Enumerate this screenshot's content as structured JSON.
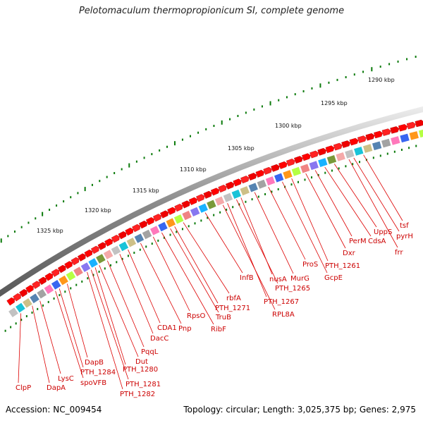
{
  "title": "Pelotomaculum thermopropionicum SI, complete genome",
  "accession": "Accession: NC_009454",
  "summary": "Topology: circular; Length: 3,025,375 bp; Genes: 2,975",
  "colors": {
    "backbone": "#777777",
    "forward_gene": "#ff0000",
    "gene_label": "#cc0000",
    "tick": "#0a7a0a"
  },
  "scale_labels": [
    "1325 kbp",
    "1320 kbp",
    "1315 kbp",
    "1310 kbp",
    "1305 kbp",
    "1300 kbp",
    "1295 kbp",
    "1290 kbp"
  ],
  "gene_labels": [
    "ClpP",
    "DapA",
    "LysC",
    "spoVFB",
    "PTH_1284",
    "DapB",
    "PTH_1282",
    "PTH_1281",
    "PTH_1280",
    "Dut",
    "PqqL",
    "DacC",
    "CDA1",
    "Pnp",
    "RpsO",
    "RibF",
    "TruB",
    "PTH_1271",
    "rbfA",
    "InfB",
    "RPL8A",
    "PTH_1267",
    "PTH_1265",
    "nusA",
    "MurG",
    "ProS",
    "GcpE",
    "PTH_1261",
    "Dxr",
    "PerM",
    "CdsA",
    "UppS",
    "frr",
    "pyrH",
    "tsf"
  ]
}
